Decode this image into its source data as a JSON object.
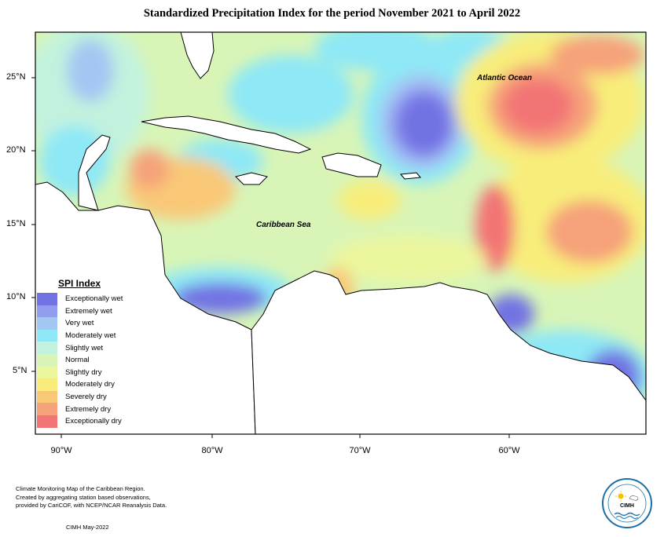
{
  "title": "Standardized Precipitation Index for the period November 2021 to April 2022",
  "axes": {
    "latitude_ticks": [
      "25°N",
      "20°N",
      "15°N",
      "10°N",
      "5°N"
    ],
    "longitude_ticks": [
      "90°W",
      "80°W",
      "70°W",
      "60°W"
    ]
  },
  "map_labels": {
    "atlantic": "Atlantic Ocean",
    "caribbean": "Caribbean Sea"
  },
  "legend": {
    "title": "SPI Index",
    "items": [
      {
        "label": "Exceptionally wet",
        "color": "#7272e3"
      },
      {
        "label": "Extremely wet",
        "color": "#939df0"
      },
      {
        "label": "Very wet",
        "color": "#a4c6f3"
      },
      {
        "label": "Moderately wet",
        "color": "#8ee8f6"
      },
      {
        "label": "Slightly wet",
        "color": "#c2f2de"
      },
      {
        "label": "Normal",
        "color": "#d8f5b7"
      },
      {
        "label": "Slightly dry",
        "color": "#ecf69d"
      },
      {
        "label": "Moderately dry",
        "color": "#f8ed7a"
      },
      {
        "label": "Severely dry",
        "color": "#f9c877"
      },
      {
        "label": "Extremely dry",
        "color": "#f6a27a"
      },
      {
        "label": "Exceptionally dry",
        "color": "#f27575"
      }
    ]
  },
  "footnote": {
    "lines": [
      "Climate Monitoring Map of the Caribbean Region.",
      "Created by aggregating station based observations,",
      "provided by CariCOF, with NCEP/NCAR Reanalysis Data."
    ],
    "credit": "CIMH May-2022"
  },
  "logo": {
    "text": "CIMH"
  }
}
